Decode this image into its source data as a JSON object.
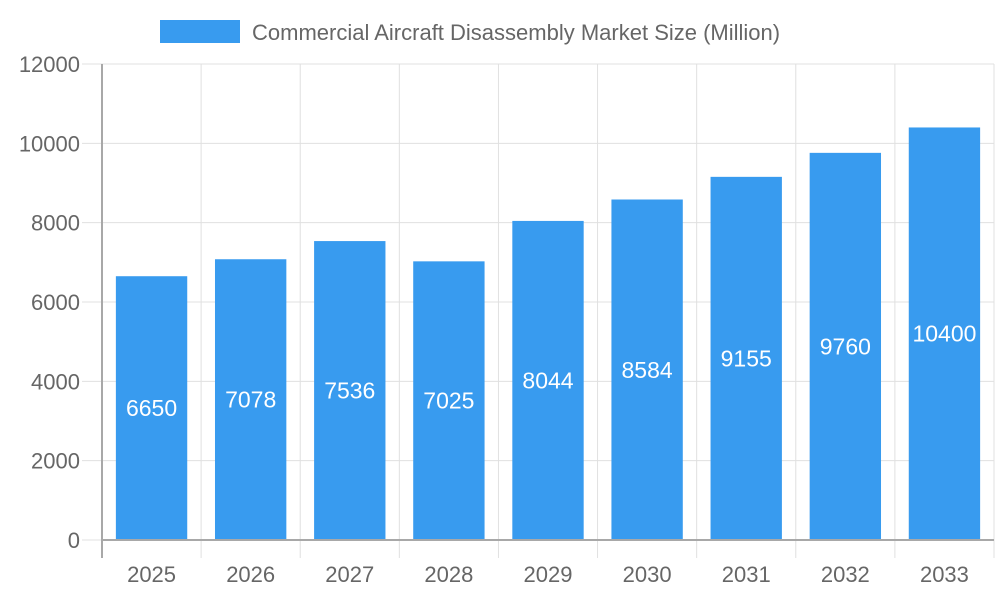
{
  "chart_data": {
    "type": "bar",
    "title": "",
    "xlabel": "",
    "ylabel": "",
    "categories": [
      "2025",
      "2026",
      "2027",
      "2028",
      "2029",
      "2030",
      "2031",
      "2032",
      "2033"
    ],
    "series": [
      {
        "name": "Commercial Aircraft Disassembly Market Size (Million)",
        "values": [
          6650,
          7078,
          7536,
          7025,
          8044,
          8584,
          9155,
          9760,
          10400
        ]
      }
    ],
    "ylim": [
      0,
      12000
    ],
    "yticks": [
      0,
      2000,
      4000,
      6000,
      8000,
      10000,
      12000
    ],
    "grid": true,
    "legend_placement": "top",
    "data_labels": true,
    "colors": {
      "bar": "#389bef",
      "grid": "#e0e0e0",
      "axis": "#a8a8a8",
      "tick_text": "#666666",
      "label_text": "#ffffff"
    }
  }
}
